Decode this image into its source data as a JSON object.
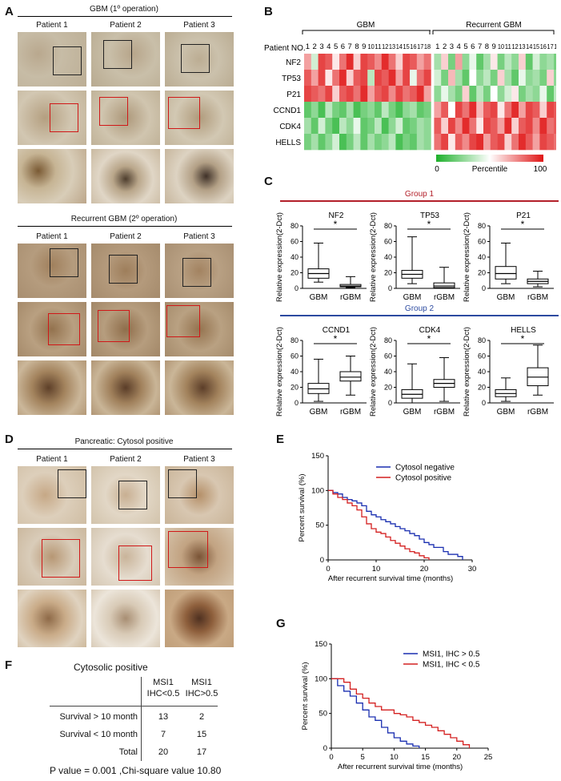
{
  "panels": {
    "A": {
      "letter": "A",
      "section1_title": "GBM (1º operation)",
      "section2_title": "Recurrent GBM (2º operation)",
      "patients": [
        "Patient 1",
        "Patient 2",
        "Patient 3"
      ]
    },
    "B": {
      "letter": "B",
      "group_gbm": "GBM",
      "group_rec": "Recurrent GBM",
      "patient_no_label": "Patient NO.",
      "patient_numbers": [
        "1",
        "2",
        "3",
        "4",
        "5",
        "6",
        "7",
        "8",
        "9",
        "10",
        "11",
        "12",
        "13",
        "14",
        "15",
        "16",
        "17",
        "18",
        "1",
        "2",
        "3",
        "4",
        "5",
        "6",
        "7",
        "8",
        "9",
        "10",
        "11",
        "12",
        "13",
        "14",
        "15",
        "16",
        "17",
        "18"
      ],
      "genes": [
        "NF2",
        "TP53",
        "P21",
        "CCND1",
        "CDK4",
        "HELLS"
      ],
      "colorbar_min": "0",
      "colorbar_label": "Percentile",
      "colorbar_max": "100"
    },
    "C": {
      "letter": "C",
      "group1": "Group 1",
      "group2": "Group 2",
      "ylabel": "Relative expression(2-Dct)",
      "star": "*",
      "plots": [
        {
          "title": "NF2"
        },
        {
          "title": "TP53"
        },
        {
          "title": "P21"
        },
        {
          "title": "CCND1"
        },
        {
          "title": "CDK4"
        },
        {
          "title": "HELLS"
        }
      ]
    },
    "D": {
      "letter": "D",
      "title": "Pancreatic: Cytosol positive",
      "patients": [
        "Patient 1",
        "Patient 2",
        "Patient 3"
      ]
    },
    "E": {
      "letter": "E",
      "ylabel": "Percent survival (%)",
      "xlabel": "After recurrent survival time (months)",
      "legend": [
        "Cytosol negative",
        "Cytosol positive"
      ]
    },
    "F": {
      "letter": "F",
      "title": "Cytosolic positive",
      "col1": [
        "MSI1",
        "IHC<0.5"
      ],
      "col2": [
        "MSI1",
        "IHC>0.5"
      ],
      "rows": [
        {
          "label": "Survival > 10 month",
          "v1": "13",
          "v2": "2"
        },
        {
          "label": "Survival < 10 month",
          "v1": "7",
          "v2": "15"
        },
        {
          "label": "Total",
          "v1": "20",
          "v2": "17"
        }
      ],
      "footer": "P value = 0.001 ,Chi-square value 10.80"
    },
    "G": {
      "letter": "G",
      "ylabel": "Percent survival (%)",
      "xlabel": "After recurrent survival time (months)",
      "legend": [
        "MSI1, IHC > 0.5",
        "MSI1, IHC < 0.5"
      ]
    }
  },
  "colors": {
    "heat_low": "#1db02a",
    "heat_high": "#e01515",
    "group1_line": "#b3202a",
    "group2_line": "#2c4aa0",
    "blue_curve": "#1a2fb0",
    "red_curve": "#d42020",
    "ihc_box_inner": "#d01818"
  },
  "chart_data": [
    {
      "type": "heatmap",
      "rows": [
        "NF2",
        "TP53",
        "P21",
        "CCND1",
        "CDK4",
        "HELLS"
      ],
      "columns": [
        "1",
        "2",
        "3",
        "4",
        "5",
        "6",
        "7",
        "8",
        "9",
        "10",
        "11",
        "12",
        "13",
        "14",
        "15",
        "16",
        "17",
        "18",
        "1",
        "2",
        "3",
        "4",
        "5",
        "6",
        "7",
        "8",
        "9",
        "10",
        "11",
        "12",
        "13",
        "14",
        "15",
        "16",
        "17",
        "18"
      ],
      "column_groups": [
        {
          "name": "GBM",
          "count": 18
        },
        {
          "name": "Recurrent GBM",
          "count": 18
        }
      ],
      "colorbar_range": [
        0,
        100
      ],
      "values": [
        [
          70,
          40,
          90,
          85,
          55,
          80,
          95,
          60,
          90,
          85,
          75,
          95,
          80,
          60,
          90,
          85,
          70,
          80,
          30,
          60,
          20,
          70,
          25,
          45,
          15,
          30,
          55,
          20,
          35,
          25,
          60,
          15,
          40,
          25,
          30,
          20
        ],
        [
          85,
          70,
          90,
          55,
          80,
          95,
          60,
          85,
          90,
          35,
          90,
          85,
          95,
          70,
          90,
          45,
          80,
          90,
          40,
          20,
          65,
          30,
          15,
          50,
          25,
          35,
          20,
          60,
          30,
          15,
          45,
          25,
          30,
          20,
          60,
          25
        ],
        [
          90,
          85,
          80,
          90,
          60,
          85,
          90,
          80,
          95,
          70,
          85,
          90,
          75,
          90,
          80,
          85,
          95,
          70,
          25,
          45,
          30,
          20,
          60,
          15,
          35,
          20,
          50,
          25,
          40,
          55,
          20,
          30,
          25,
          45,
          15,
          35
        ],
        [
          15,
          25,
          10,
          35,
          20,
          15,
          30,
          10,
          20,
          25,
          15,
          35,
          20,
          10,
          25,
          30,
          15,
          20,
          70,
          85,
          50,
          90,
          80,
          95,
          65,
          85,
          90,
          55,
          80,
          95,
          70,
          90,
          85,
          60,
          90,
          85
        ],
        [
          30,
          15,
          40,
          20,
          10,
          35,
          25,
          45,
          15,
          20,
          35,
          10,
          25,
          40,
          15,
          20,
          30,
          25,
          85,
          60,
          90,
          75,
          95,
          80,
          55,
          90,
          85,
          70,
          95,
          60,
          85,
          90,
          75,
          95,
          80,
          85
        ],
        [
          20,
          30,
          15,
          25,
          40,
          10,
          20,
          35,
          15,
          30,
          20,
          25,
          35,
          10,
          20,
          15,
          30,
          25,
          80,
          90,
          55,
          85,
          75,
          90,
          95,
          70,
          85,
          90,
          60,
          80,
          95,
          85,
          70,
          90,
          85,
          80
        ]
      ]
    },
    {
      "type": "box",
      "title": "NF2",
      "categories": [
        "GBM",
        "rGBM"
      ],
      "ylabel": "Relative expression(2-Dct)",
      "ylim": [
        0,
        80
      ],
      "yticks": [
        0,
        20,
        40,
        60,
        80
      ],
      "boxes": [
        {
          "min": 8,
          "q1": 13,
          "median": 19,
          "q3": 25,
          "max": 58
        },
        {
          "min": 1,
          "q1": 2,
          "median": 3,
          "q3": 5,
          "max": 15
        }
      ],
      "significance": "*"
    },
    {
      "type": "box",
      "title": "TP53",
      "categories": [
        "GBM",
        "rGBM"
      ],
      "ylabel": "Relative expression(2-Dct)",
      "ylim": [
        0,
        80
      ],
      "yticks": [
        0,
        20,
        40,
        60,
        80
      ],
      "boxes": [
        {
          "min": 6,
          "q1": 13,
          "median": 18,
          "q3": 23,
          "max": 66
        },
        {
          "min": 0,
          "q1": 1,
          "median": 3,
          "q3": 7,
          "max": 27
        }
      ],
      "significance": "*"
    },
    {
      "type": "box",
      "title": "P21",
      "categories": [
        "GBM",
        "rGBM"
      ],
      "ylabel": "Relative expression(2-Dct)",
      "ylim": [
        0,
        80
      ],
      "yticks": [
        0,
        20,
        40,
        60,
        80
      ],
      "boxes": [
        {
          "min": 6,
          "q1": 12,
          "median": 19,
          "q3": 28,
          "max": 58
        },
        {
          "min": 2,
          "q1": 6,
          "median": 9,
          "q3": 12,
          "max": 22
        }
      ],
      "significance": "*"
    },
    {
      "type": "box",
      "title": "CCND1",
      "categories": [
        "GBM",
        "rGBM"
      ],
      "ylabel": "Relative expression(2-Dct)",
      "ylim": [
        0,
        80
      ],
      "yticks": [
        0,
        20,
        40,
        60,
        80
      ],
      "boxes": [
        {
          "min": 2,
          "q1": 12,
          "median": 18,
          "q3": 25,
          "max": 56
        },
        {
          "min": 10,
          "q1": 28,
          "median": 33,
          "q3": 40,
          "max": 60
        }
      ],
      "significance": "*"
    },
    {
      "type": "box",
      "title": "CDK4",
      "categories": [
        "GBM",
        "rGBM"
      ],
      "ylabel": "Relative expression(2-Dct)",
      "ylim": [
        0,
        80
      ],
      "yticks": [
        0,
        20,
        40,
        60,
        80
      ],
      "boxes": [
        {
          "min": 0,
          "q1": 6,
          "median": 11,
          "q3": 17,
          "max": 50
        },
        {
          "min": 2,
          "q1": 20,
          "median": 25,
          "q3": 30,
          "max": 58
        }
      ],
      "significance": "*"
    },
    {
      "type": "box",
      "title": "HELLS",
      "categories": [
        "GBM",
        "rGBM"
      ],
      "ylabel": "Relative expression(2-Dct)",
      "ylim": [
        0,
        80
      ],
      "yticks": [
        0,
        20,
        40,
        60,
        80
      ],
      "boxes": [
        {
          "min": 2,
          "q1": 8,
          "median": 12,
          "q3": 17,
          "max": 32
        },
        {
          "min": 10,
          "q1": 22,
          "median": 33,
          "q3": 45,
          "max": 74
        }
      ],
      "significance": "*"
    },
    {
      "type": "line",
      "subtype": "kaplan-meier",
      "xlabel": "After recurrent survival time (months)",
      "ylabel": "Percent survival (%)",
      "xlim": [
        0,
        30
      ],
      "ylim": [
        0,
        150
      ],
      "xticks": [
        0,
        10,
        20,
        30
      ],
      "yticks": [
        0,
        50,
        100,
        150
      ],
      "legend_position": "top-right",
      "series": [
        {
          "name": "Cytosol negative",
          "color": "#1a2fb0",
          "x": [
            0,
            1,
            2,
            3,
            4,
            5,
            6,
            7,
            8,
            9,
            10,
            11,
            12,
            13,
            14,
            15,
            16,
            17,
            18,
            19,
            20,
            21,
            22,
            24,
            25,
            27,
            28
          ],
          "y": [
            100,
            97,
            95,
            90,
            87,
            85,
            82,
            78,
            70,
            65,
            62,
            58,
            55,
            52,
            48,
            45,
            42,
            38,
            35,
            30,
            25,
            22,
            18,
            12,
            8,
            5,
            0
          ]
        },
        {
          "name": "Cytosol positive",
          "color": "#d42020",
          "x": [
            0,
            1,
            2,
            3,
            4,
            5,
            6,
            7,
            8,
            9,
            10,
            11,
            12,
            13,
            14,
            15,
            16,
            17,
            18,
            19,
            20,
            21
          ],
          "y": [
            100,
            95,
            90,
            87,
            82,
            78,
            72,
            62,
            52,
            45,
            40,
            38,
            33,
            28,
            24,
            20,
            16,
            12,
            10,
            6,
            3,
            0
          ]
        }
      ]
    },
    {
      "type": "line",
      "subtype": "kaplan-meier",
      "xlabel": "After recurrent survival time (months)",
      "ylabel": "Percent survival (%)",
      "xlim": [
        0,
        25
      ],
      "ylim": [
        0,
        150
      ],
      "xticks": [
        0,
        5,
        10,
        15,
        20,
        25
      ],
      "yticks": [
        0,
        50,
        100,
        150
      ],
      "legend_position": "top-right",
      "series": [
        {
          "name": "MSI1, IHC > 0.5",
          "color": "#1a2fb0",
          "x": [
            0,
            1,
            2,
            3,
            4,
            5,
            6,
            7,
            8,
            9,
            10,
            11,
            12,
            13,
            14
          ],
          "y": [
            100,
            90,
            82,
            75,
            65,
            55,
            45,
            40,
            30,
            22,
            15,
            10,
            6,
            3,
            0
          ]
        },
        {
          "name": "MSI1, IHC < 0.5",
          "color": "#d42020",
          "x": [
            0,
            2,
            3,
            4,
            5,
            6,
            7,
            8,
            9,
            10,
            11,
            12,
            13,
            14,
            15,
            16,
            17,
            18,
            19,
            20,
            21,
            22
          ],
          "y": [
            100,
            95,
            85,
            78,
            72,
            65,
            60,
            55,
            55,
            50,
            48,
            45,
            40,
            37,
            33,
            30,
            25,
            20,
            15,
            10,
            5,
            0
          ]
        }
      ]
    }
  ]
}
